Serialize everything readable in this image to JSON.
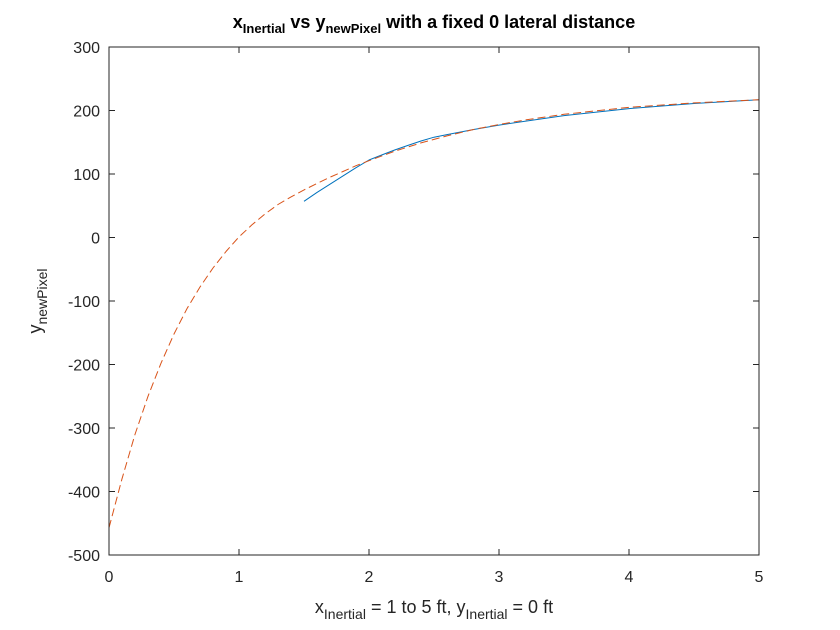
{
  "chart_data": {
    "type": "line",
    "title": {
      "p1": "x",
      "s1": "Inertial",
      "p2": " vs y",
      "s2": "newPixel",
      "p3": " with a fixed 0 lateral distance"
    },
    "xlabel": {
      "p1": "x",
      "s1": "Inertial",
      "p2": " = 1 to 5 ft, y",
      "s2": "Inertial",
      "p3": " = 0 ft"
    },
    "ylabel": {
      "p1": "y",
      "s1": "newPixel"
    },
    "xlim": [
      0,
      5
    ],
    "ylim": [
      -500,
      300
    ],
    "xticks": [
      0,
      1,
      2,
      3,
      4,
      5
    ],
    "yticks": [
      -500,
      -400,
      -300,
      -200,
      -100,
      0,
      100,
      200,
      300
    ],
    "grid": false,
    "colors": {
      "series1": "#0072BD",
      "series2": "#D95319",
      "axis": "#262626"
    },
    "series": [
      {
        "style": "solid",
        "x": [
          1.5,
          1.6,
          1.7,
          1.8,
          1.9,
          2.0,
          2.1,
          2.2,
          2.3,
          2.4,
          2.5,
          2.6,
          2.8,
          3.0,
          3.2,
          3.5,
          4.0,
          4.5,
          5.0
        ],
        "y": [
          57,
          71,
          84,
          97,
          110,
          122,
          130,
          138,
          145,
          152,
          158,
          162,
          170,
          177,
          183,
          192,
          203,
          211,
          217
        ]
      },
      {
        "style": "dashed",
        "x": [
          0,
          0.1,
          0.2,
          0.3,
          0.4,
          0.5,
          0.6,
          0.7,
          0.8,
          0.9,
          1.0,
          1.1,
          1.2,
          1.3,
          1.4,
          1.5,
          1.6,
          1.7,
          1.8,
          1.9,
          2.0,
          2.2,
          2.4,
          2.6,
          2.8,
          3.0,
          3.2,
          3.5,
          4.0,
          4.5,
          5.0
        ],
        "y": [
          -457,
          -380,
          -310,
          -250,
          -198,
          -152,
          -112,
          -78,
          -48,
          -22,
          1,
          20,
          37,
          52,
          64,
          75,
          85,
          95,
          104,
          113,
          121,
          136,
          149,
          160,
          170,
          178,
          185,
          194,
          205,
          212,
          217
        ]
      }
    ]
  }
}
